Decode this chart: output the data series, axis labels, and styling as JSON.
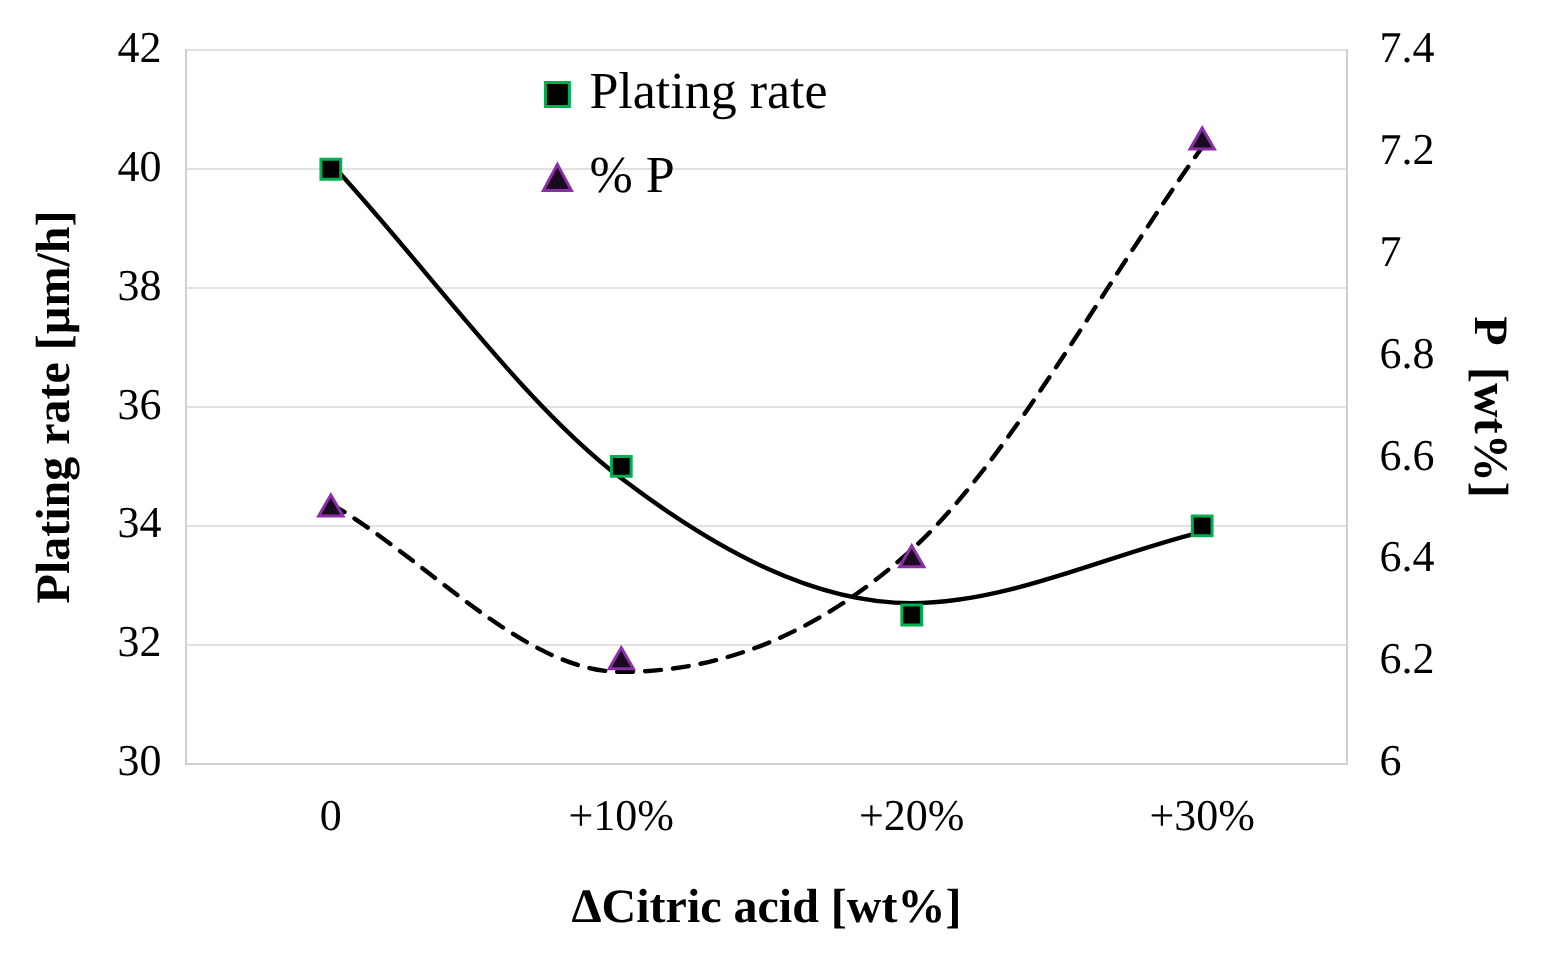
{
  "chart_data": {
    "type": "line",
    "xlabel": "ΔCitric acid [wt%]",
    "ylabel": "Plating rate [µm/h]",
    "y2label": "P  [wt%]",
    "categories": [
      "0",
      "+10%",
      "+20%",
      "+30%"
    ],
    "series": [
      {
        "name": "Plating rate",
        "type": "scatter",
        "marker": "square",
        "color": "#000000",
        "values": [
          40,
          35,
          32.5,
          34
        ]
      },
      {
        "name": "% P",
        "type": "scatter",
        "marker": "triangle",
        "color": "#1a0a1f",
        "axis": "y2",
        "values": [
          6.5,
          6.2,
          6.4,
          7.22
        ]
      },
      {
        "color": "#000000",
        "line_style": "solid",
        "values": [
          40.1,
          34.8,
          32.7,
          33.9
        ]
      },
      {
        "color": "#000000",
        "line_style": "dashed",
        "axis": "y2",
        "values": [
          6.51,
          6.18,
          6.42,
          7.21
        ]
      }
    ],
    "ylim": [
      30,
      42
    ],
    "yticks": [
      30,
      32,
      34,
      36,
      38,
      40,
      42
    ],
    "y2lim": [
      6,
      7.4
    ],
    "y2ticks": [
      6,
      6.2,
      6.4,
      6.6,
      6.8,
      7,
      7.2,
      7.4
    ],
    "grid": "y",
    "legend": "top"
  }
}
